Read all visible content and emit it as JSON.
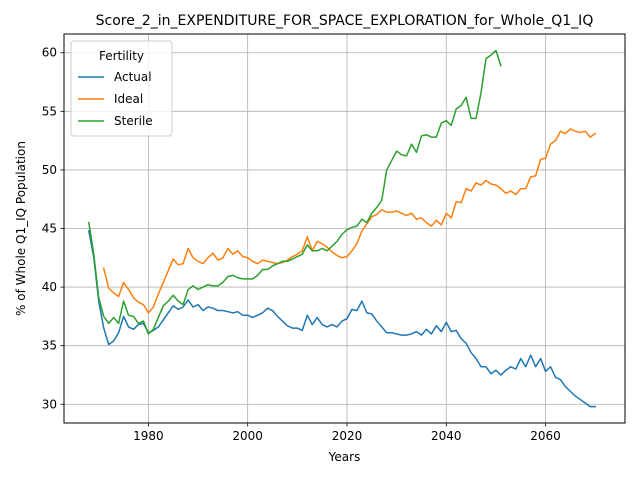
{
  "chart_data": {
    "type": "line",
    "title": "Score_2_in_EXPENDITURE_FOR_SPACE_EXPLORATION_for_Whole_Q1_IQ",
    "xlabel": "Years",
    "ylabel": "% of Whole Q1_IQ Population",
    "xlim": [
      1963,
      2076
    ],
    "ylim": [
      28.4,
      61.6
    ],
    "xticks": [
      1980,
      2000,
      2020,
      2040,
      2060
    ],
    "yticks": [
      30,
      35,
      40,
      45,
      50,
      55,
      60
    ],
    "grid": true,
    "legend": {
      "title": "Fertility",
      "placement": "upper-left"
    },
    "series": [
      {
        "name": "Actual",
        "color": "#1f77b4",
        "x": [
          1968,
          1969,
          1970,
          1971,
          1972,
          1973,
          1974,
          1975,
          1976,
          1977,
          1978,
          1979,
          1980,
          1981,
          1982,
          1983,
          1984,
          1985,
          1986,
          1987,
          1988,
          1989,
          1990,
          1991,
          1992,
          1993,
          1994,
          1995,
          1996,
          1997,
          1998,
          1999,
          2000,
          2001,
          2002,
          2003,
          2004,
          2005,
          2006,
          2007,
          2008,
          2009,
          2010,
          2011,
          2012,
          2013,
          2014,
          2015,
          2016,
          2017,
          2018,
          2019,
          2020,
          2021,
          2022,
          2023,
          2024,
          2025,
          2026,
          2027,
          2028,
          2029,
          2030,
          2031,
          2032,
          2033,
          2034,
          2035,
          2036,
          2037,
          2038,
          2039,
          2040,
          2041,
          2042,
          2043,
          2044,
          2045,
          2046,
          2047,
          2048,
          2049,
          2050,
          2051,
          2052,
          2053,
          2054,
          2055,
          2056,
          2057,
          2058,
          2059,
          2060,
          2061,
          2062,
          2063,
          2064,
          2065,
          2066,
          2067,
          2068,
          2069,
          2070
        ],
        "y": [
          44.8,
          42.5,
          38.8,
          36.5,
          35.1,
          35.4,
          36.1,
          37.5,
          36.6,
          36.4,
          36.8,
          36.9,
          36.1,
          36.3,
          36.6,
          37.2,
          37.8,
          38.4,
          38.1,
          38.3,
          38.9,
          38.3,
          38.5,
          38.0,
          38.3,
          38.2,
          38.0,
          38.0,
          37.9,
          37.8,
          37.9,
          37.6,
          37.6,
          37.4,
          37.6,
          37.8,
          38.2,
          38.0,
          37.5,
          37.1,
          36.7,
          36.5,
          36.5,
          36.3,
          37.6,
          36.8,
          37.4,
          36.8,
          36.6,
          36.8,
          36.6,
          37.1,
          37.3,
          38.1,
          38.0,
          38.8,
          37.8,
          37.7,
          37.1,
          36.6,
          36.1,
          36.1,
          36.0,
          35.9,
          35.9,
          36.0,
          36.2,
          35.9,
          36.4,
          36.0,
          36.7,
          36.2,
          37.0,
          36.2,
          36.3,
          35.6,
          35.2,
          34.4,
          33.9,
          33.2,
          33.2,
          32.6,
          32.9,
          32.5,
          32.9,
          33.2,
          33.0,
          33.9,
          33.2,
          34.2,
          33.2,
          33.9,
          32.8,
          33.2,
          32.3,
          32.1,
          31.5,
          31.1,
          30.7,
          30.4,
          30.1,
          29.8,
          29.8
        ]
      },
      {
        "name": "Ideal",
        "color": "#ff7f0e",
        "x": [
          1971,
          1972,
          1973,
          1974,
          1975,
          1976,
          1977,
          1978,
          1979,
          1980,
          1981,
          1982,
          1983,
          1984,
          1985,
          1986,
          1987,
          1988,
          1989,
          1990,
          1991,
          1992,
          1993,
          1994,
          1995,
          1996,
          1997,
          1998,
          1999,
          2000,
          2001,
          2002,
          2003,
          2004,
          2005,
          2006,
          2007,
          2008,
          2009,
          2010,
          2011,
          2012,
          2013,
          2014,
          2015,
          2016,
          2017,
          2018,
          2019,
          2020,
          2021,
          2022,
          2023,
          2024,
          2025,
          2026,
          2027,
          2028,
          2029,
          2030,
          2031,
          2032,
          2033,
          2034,
          2035,
          2036,
          2037,
          2038,
          2039,
          2040,
          2041,
          2042,
          2043,
          2044,
          2045,
          2046,
          2047,
          2048,
          2049,
          2050,
          2051,
          2052,
          2053,
          2054,
          2055,
          2056,
          2057,
          2058,
          2059,
          2060,
          2061,
          2062,
          2063,
          2064,
          2065,
          2066,
          2067,
          2068,
          2069,
          2070
        ],
        "y": [
          41.6,
          39.9,
          39.5,
          39.2,
          40.4,
          39.8,
          39.1,
          38.7,
          38.5,
          37.8,
          38.3,
          39.4,
          40.4,
          41.4,
          42.4,
          41.9,
          42.0,
          43.3,
          42.5,
          42.2,
          42.0,
          42.5,
          42.9,
          42.3,
          42.5,
          43.3,
          42.8,
          43.1,
          42.6,
          42.5,
          42.2,
          42.0,
          42.3,
          42.2,
          42.1,
          42.0,
          42.1,
          42.3,
          42.6,
          42.8,
          43.1,
          44.3,
          43.1,
          43.9,
          43.7,
          43.4,
          43.0,
          42.7,
          42.5,
          42.6,
          43.1,
          43.7,
          44.8,
          45.4,
          46.0,
          46.2,
          46.6,
          46.4,
          46.4,
          46.5,
          46.3,
          46.1,
          46.3,
          45.8,
          45.9,
          45.5,
          45.2,
          45.7,
          45.3,
          46.3,
          45.9,
          47.3,
          47.2,
          48.4,
          48.2,
          48.9,
          48.7,
          49.1,
          48.8,
          48.7,
          48.4,
          48.0,
          48.2,
          47.9,
          48.4,
          48.4,
          49.4,
          49.5,
          50.9,
          51.0,
          52.2,
          52.5,
          53.3,
          53.1,
          53.5,
          53.3,
          53.2,
          53.3,
          52.8,
          53.1
        ]
      },
      {
        "name": "Sterile",
        "color": "#2ca02c",
        "x": [
          1968,
          1969,
          1970,
          1971,
          1972,
          1973,
          1974,
          1975,
          1976,
          1977,
          1978,
          1979,
          1980,
          1981,
          1982,
          1983,
          1984,
          1985,
          1986,
          1987,
          1988,
          1989,
          1990,
          1991,
          1992,
          1993,
          1994,
          1995,
          1996,
          1997,
          1998,
          1999,
          2000,
          2001,
          2002,
          2003,
          2004,
          2005,
          2006,
          2007,
          2008,
          2009,
          2010,
          2011,
          2012,
          2013,
          2014,
          2015,
          2016,
          2017,
          2018,
          2019,
          2020,
          2021,
          2022,
          2023,
          2024,
          2025,
          2026,
          2027,
          2028,
          2029,
          2030,
          2031,
          2032,
          2033,
          2034,
          2035,
          2036,
          2037,
          2038,
          2039,
          2040,
          2041,
          2042,
          2043,
          2044,
          2045,
          2046,
          2047,
          2048,
          2049,
          2050,
          2051
        ],
        "y": [
          45.5,
          42.8,
          39.1,
          37.5,
          36.9,
          37.4,
          36.9,
          38.8,
          37.6,
          37.5,
          36.9,
          37.1,
          36.0,
          36.4,
          37.4,
          38.4,
          38.8,
          39.3,
          38.8,
          38.5,
          39.8,
          40.1,
          39.8,
          40.0,
          40.2,
          40.1,
          40.1,
          40.4,
          40.9,
          41.0,
          40.8,
          40.7,
          40.7,
          40.7,
          41.0,
          41.5,
          41.5,
          41.8,
          42.0,
          42.2,
          42.2,
          42.4,
          42.6,
          42.8,
          43.6,
          43.1,
          43.1,
          43.3,
          43.1,
          43.5,
          43.9,
          44.5,
          44.9,
          45.1,
          45.2,
          45.8,
          45.5,
          46.3,
          46.8,
          47.4,
          50.0,
          50.8,
          51.6,
          51.3,
          51.2,
          52.2,
          51.5,
          52.9,
          53.0,
          52.8,
          52.8,
          54.0,
          54.2,
          53.8,
          55.2,
          55.5,
          56.2,
          54.4,
          54.4,
          56.6,
          59.5,
          59.8,
          60.2,
          58.9
        ]
      }
    ]
  }
}
